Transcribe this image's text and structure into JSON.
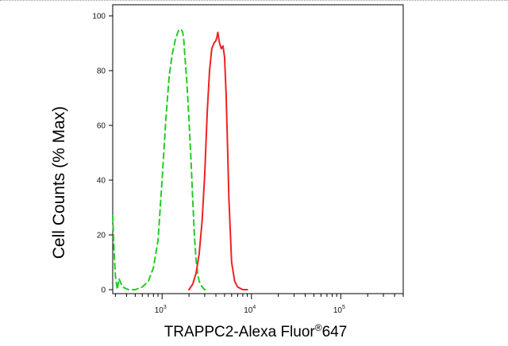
{
  "chart_data": {
    "type": "line",
    "title": "",
    "xlabel": "TRAPPC2-Alexa Fluor",
    "xlabel_mark": "®",
    "xlabel_suffix": "647",
    "ylabel": "Cell Counts (% Max)",
    "x_scale": "log",
    "xlim": [
      280,
      500000
    ],
    "ylim": [
      0,
      100
    ],
    "y_ticks": [
      0,
      20,
      40,
      60,
      80,
      100
    ],
    "y_tick_labels": [
      "0",
      "20",
      "40",
      "60",
      "80",
      "100"
    ],
    "x_major_ticks": [
      1000,
      10000,
      100000
    ],
    "x_tick_labels": [
      {
        "base": "10",
        "exp": "3"
      },
      {
        "base": "10",
        "exp": "4"
      },
      {
        "base": "10",
        "exp": "5"
      }
    ],
    "grid": false,
    "legend": "none",
    "series": [
      {
        "color": "#22cc22",
        "style": "dashed",
        "x": [
          280,
          290,
          300,
          315,
          330,
          360,
          420,
          500,
          600,
          700,
          800,
          900,
          1000,
          1100,
          1200,
          1300,
          1400,
          1500,
          1550,
          1600,
          1650,
          1700,
          1750,
          1800,
          1900,
          2000,
          2100,
          2200,
          2300,
          2400,
          2500,
          2600,
          2800,
          3000,
          3200
        ],
        "values": [
          27,
          14,
          5,
          0,
          4,
          1,
          0,
          0,
          1,
          3,
          8,
          18,
          40,
          62,
          78,
          86,
          91,
          94,
          95,
          95,
          95,
          94,
          91,
          85,
          75,
          62,
          48,
          33,
          20,
          11,
          6,
          3,
          1,
          0,
          0
        ]
      },
      {
        "color": "#ee2222",
        "style": "solid",
        "x": [
          2000,
          2200,
          2400,
          2600,
          2800,
          3000,
          3200,
          3400,
          3600,
          3800,
          4000,
          4100,
          4200,
          4300,
          4400,
          4600,
          4800,
          5000,
          5200,
          5400,
          5600,
          6000,
          6500,
          7000,
          8000,
          9000
        ],
        "values": [
          0,
          2,
          6,
          13,
          25,
          42,
          65,
          80,
          88,
          90,
          91,
          92,
          94,
          92,
          90,
          88,
          89,
          85,
          72,
          52,
          33,
          10,
          3,
          1,
          0,
          0
        ]
      }
    ]
  }
}
